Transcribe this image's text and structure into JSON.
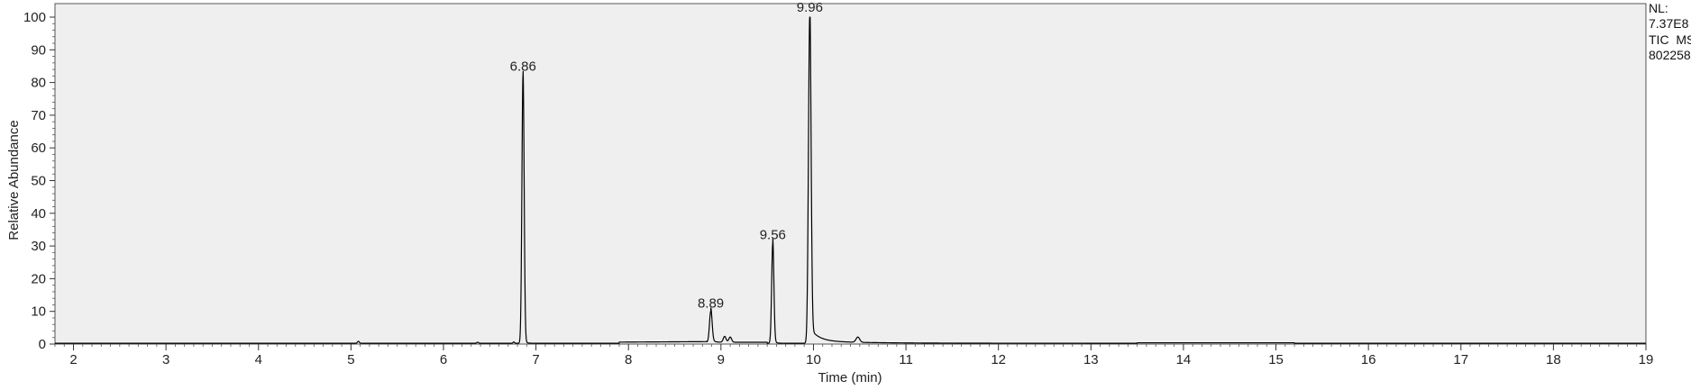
{
  "chart_data": {
    "type": "line",
    "title": "",
    "xlabel": "Time (min)",
    "ylabel": "Relative Abundance",
    "xlim": [
      1.8,
      19.0
    ],
    "ylim": [
      0,
      100
    ],
    "xticks": [
      "2",
      "3",
      "4",
      "5",
      "6",
      "7",
      "8",
      "9",
      "10",
      "11",
      "12",
      "13",
      "14",
      "15",
      "16",
      "17",
      "18",
      "19"
    ],
    "yticks": [
      "0",
      "10",
      "20",
      "30",
      "40",
      "50",
      "60",
      "70",
      "80",
      "90",
      "100"
    ],
    "grid": false,
    "plot_background": "#efefef",
    "line_color": "#000000",
    "peaks": [
      {
        "rt": 6.86,
        "label": "6.86",
        "height": 82,
        "width": 0.012
      },
      {
        "rt": 8.89,
        "label": "8.89",
        "height": 9.5,
        "width": 0.014
      },
      {
        "rt": 9.56,
        "label": "9.56",
        "height": 30.5,
        "width": 0.012
      },
      {
        "rt": 9.96,
        "label": "9.96",
        "height": 100,
        "width": 0.014
      }
    ],
    "minor_peaks": [
      {
        "rt": 5.08,
        "height": 0.6,
        "width": 0.01
      },
      {
        "rt": 6.37,
        "height": 0.3,
        "width": 0.01
      },
      {
        "rt": 6.76,
        "height": 0.4,
        "width": 0.008
      },
      {
        "rt": 9.04,
        "height": 1.8,
        "width": 0.015
      },
      {
        "rt": 9.1,
        "height": 1.6,
        "width": 0.015
      },
      {
        "rt": 10.48,
        "height": 1.6,
        "width": 0.02
      }
    ]
  },
  "info": {
    "nl_label": "NL:",
    "nl_value": "7.37E8",
    "scan": "TIC  MS",
    "file": "802258"
  }
}
